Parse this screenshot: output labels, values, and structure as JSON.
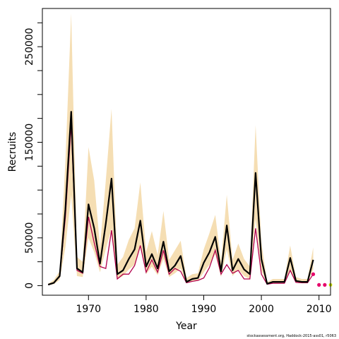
{
  "chart_data": {
    "type": "line",
    "xlabel": "Year",
    "ylabel": "Recruits",
    "xlim": [
      1962,
      2012
    ],
    "ylim": [
      -10000,
      290000
    ],
    "x_ticks": [
      1970,
      1980,
      1990,
      2000,
      2010
    ],
    "x_tick_labels": [
      "1970",
      "1980",
      "1990",
      "2000",
      "2010"
    ],
    "y_ticks": [
      0,
      25000,
      50000,
      75000,
      100000,
      125000,
      150000,
      175000,
      200000,
      225000,
      250000,
      275000
    ],
    "y_tick_labels": [
      "0",
      "",
      "50000",
      "",
      "",
      "",
      "150000",
      "",
      "",
      "",
      "250000",
      ""
    ],
    "grid": false,
    "colors": {
      "band": "#f5deb3",
      "estimate": "#000000",
      "alternate": "#b2004c",
      "projection_points": "#e6006b",
      "final_point": "#c8e000"
    },
    "x": [
      1963,
      1964,
      1965,
      1966,
      1967,
      1968,
      1969,
      1970,
      1971,
      1972,
      1973,
      1974,
      1975,
      1976,
      1977,
      1978,
      1979,
      1980,
      1981,
      1982,
      1983,
      1984,
      1985,
      1986,
      1987,
      1988,
      1989,
      1990,
      1991,
      1992,
      1993,
      1994,
      1995,
      1996,
      1997,
      1998,
      1999,
      2000,
      2001,
      2002,
      2003,
      2004,
      2005,
      2006,
      2007,
      2008,
      2009
    ],
    "series": [
      {
        "values": [
          1000,
          3000,
          10000,
          80000,
          182000,
          18000,
          14000,
          85000,
          60000,
          23000,
          65000,
          112000,
          12000,
          16000,
          28000,
          38000,
          68000,
          20000,
          33000,
          18000,
          46000,
          15000,
          21000,
          31000,
          4000,
          7000,
          8000,
          24000,
          35000,
          51000,
          15000,
          63000,
          16000,
          28000,
          17000,
          12000,
          118000,
          28000,
          2000,
          4000,
          4000,
          4000,
          29000,
          5000,
          4000,
          4000,
          27000
        ],
        "lower": [
          500,
          1500,
          6000,
          40000,
          95000,
          10000,
          9000,
          50000,
          35000,
          14000,
          38000,
          60000,
          7000,
          10000,
          17000,
          22000,
          42000,
          12000,
          20000,
          11000,
          28000,
          9000,
          13000,
          18000,
          2500,
          4500,
          5000,
          14000,
          22000,
          33000,
          9000,
          38000,
          10000,
          17000,
          10000,
          7000,
          70000,
          16000,
          1200,
          2500,
          2500,
          2500,
          17000,
          3000,
          2500,
          2500,
          17000
        ],
        "upper": [
          2000,
          6000,
          15000,
          130000,
          285000,
          30000,
          25000,
          145000,
          110000,
          40000,
          110000,
          185000,
          22000,
          30000,
          48000,
          60000,
          108000,
          35000,
          57000,
          32000,
          78000,
          27000,
          37000,
          47000,
          8000,
          12000,
          13000,
          38000,
          55000,
          74000,
          25000,
          95000,
          27000,
          44000,
          28000,
          20000,
          168000,
          45000,
          4000,
          7000,
          7000,
          7000,
          42000,
          9000,
          7000,
          7000,
          40000
        ]
      },
      {
        "values": [
          1000,
          2800,
          9500,
          72000,
          170000,
          16000,
          13000,
          72000,
          45000,
          20000,
          18000,
          58000,
          7000,
          12000,
          12000,
          21000,
          42000,
          14000,
          27000,
          14000,
          37000,
          12000,
          18000,
          15000,
          3000,
          4500,
          5500,
          8000,
          19000,
          37000,
          12000,
          22000,
          13000,
          16000,
          7000,
          7000,
          60000,
          12000,
          1500,
          2500,
          2500,
          2500,
          16000,
          3500,
          3000,
          3000,
          12000
        ]
      },
      {
        "x": [
          2009,
          2010,
          2011
        ],
        "values": [
          12000,
          800,
          800
        ]
      },
      {
        "x": [
          2012
        ],
        "values": [
          800
        ]
      }
    ]
  },
  "footnote": "stockassessment.org, Haddock-2015-ass01, r5063"
}
